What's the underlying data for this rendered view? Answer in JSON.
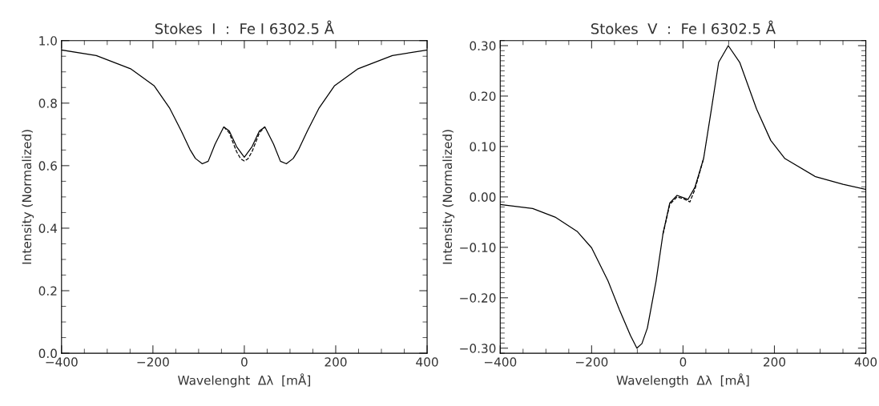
{
  "chart_data": [
    {
      "type": "line",
      "title": "Stokes  I  :  Fe I 6302.5 Å",
      "xlabel": "Wavelenght  Δλ  [mÅ]",
      "ylabel": "Intensity (Normalized)",
      "xlim": [
        -400,
        400
      ],
      "xticks": [
        -400,
        -200,
        0,
        200,
        400
      ],
      "ylim": [
        0,
        1.0
      ],
      "yticks": [
        {
          "value": 0,
          "label": "0.0"
        },
        0.2,
        0.4,
        0.6,
        0.8,
        {
          "value": 1.0,
          "label": "1.0"
        }
      ],
      "grid": false,
      "legend": false,
      "series": [
        {
          "color": "#000000",
          "line_style": "solid",
          "x": [
            -400,
            -324,
            -249,
            -197,
            -163,
            -138,
            -119,
            -107,
            -92,
            -79,
            -64,
            -45,
            -33,
            -17,
            0,
            17,
            33,
            45,
            64,
            79,
            92,
            107,
            119,
            138,
            163,
            197,
            249,
            324,
            400
          ],
          "values": [
            0.97,
            0.952,
            0.91,
            0.855,
            0.783,
            0.711,
            0.652,
            0.623,
            0.606,
            0.614,
            0.669,
            0.724,
            0.711,
            0.661,
            0.627,
            0.661,
            0.711,
            0.724,
            0.669,
            0.614,
            0.606,
            0.623,
            0.652,
            0.711,
            0.783,
            0.855,
            0.91,
            0.952,
            0.97
          ]
        },
        {
          "color": "#000000",
          "line_style": "dashed",
          "x": [
            -45,
            -33,
            -17,
            -8,
            0,
            8,
            17,
            33,
            45
          ],
          "values": [
            0.724,
            0.705,
            0.645,
            0.622,
            0.615,
            0.622,
            0.645,
            0.705,
            0.724
          ]
        }
      ]
    },
    {
      "type": "line",
      "title": "Stokes  V  :  Fe I 6302.5 Å",
      "xlabel": "Wavelength  Δλ  [mÅ]",
      "ylabel": "Intensity (Normalized)",
      "xlim": [
        -400,
        400
      ],
      "xticks": [
        -400,
        -200,
        0,
        200,
        400
      ],
      "ylim": [
        -0.31,
        0.31
      ],
      "yticks": [
        {
          "value": -0.3,
          "label": "−0.30"
        },
        {
          "value": -0.2,
          "label": "−0.20"
        },
        {
          "value": -0.1,
          "label": "−0.10"
        },
        {
          "value": 0,
          "label": "0.00"
        },
        {
          "value": 0.1,
          "label": "0.10"
        },
        {
          "value": 0.2,
          "label": "0.20"
        },
        {
          "value": 0.3,
          "label": "0.30"
        }
      ],
      "grid": false,
      "legend": false,
      "series": [
        {
          "color": "#000000",
          "line_style": "solid",
          "x": [
            -400,
            -329,
            -280,
            -231,
            -200,
            -164,
            -139,
            -115,
            -101,
            -90,
            -78,
            -59,
            -44,
            -29,
            -13,
            2,
            11,
            26,
            45,
            63,
            78,
            99,
            124,
            161,
            192,
            223,
            290,
            350,
            400
          ],
          "values": [
            -0.015,
            -0.023,
            -0.04,
            -0.069,
            -0.101,
            -0.167,
            -0.224,
            -0.275,
            -0.3,
            -0.291,
            -0.26,
            -0.167,
            -0.074,
            -0.012,
            0.003,
            -0.002,
            -0.005,
            0.019,
            0.076,
            0.179,
            0.267,
            0.3,
            0.267,
            0.174,
            0.112,
            0.076,
            0.04,
            0.025,
            0.015
          ]
        },
        {
          "color": "#000000",
          "line_style": "dashed",
          "x": [
            -44,
            -29,
            -13,
            2,
            15,
            26,
            45
          ],
          "values": [
            -0.074,
            -0.015,
            0.0,
            -0.004,
            -0.01,
            0.015,
            0.076
          ]
        }
      ]
    }
  ]
}
